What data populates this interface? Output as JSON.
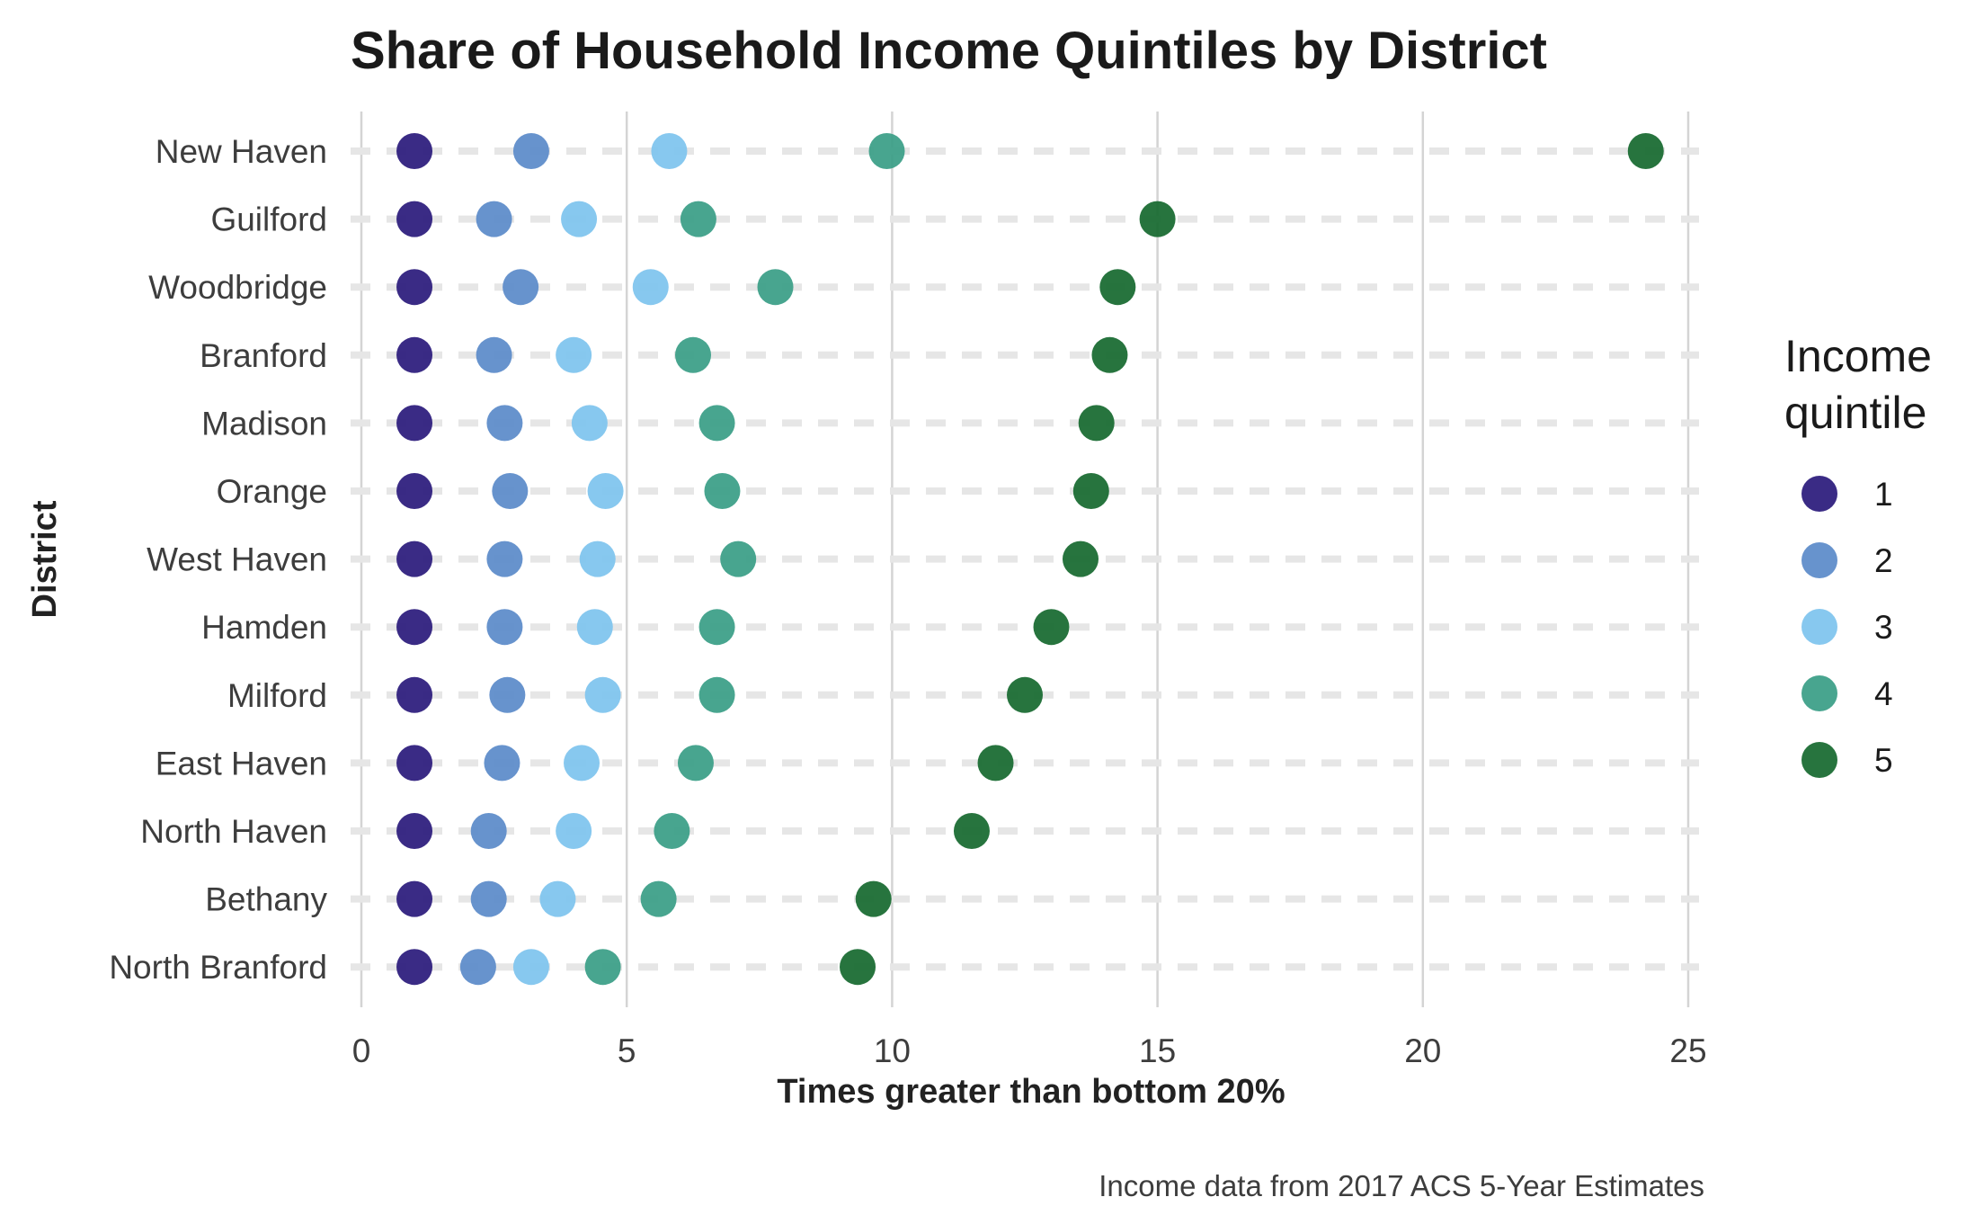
{
  "chart_data": {
    "type": "scatter",
    "title": "Share of Household Income Quintiles by District",
    "xlabel": "Times greater than bottom 20%",
    "ylabel": "District",
    "caption": "Income data from 2017 ACS 5-Year Estimates",
    "xlim": [
      0,
      25
    ],
    "xticks": [
      0,
      5,
      10,
      15,
      20,
      25
    ],
    "grid": "vertical major lines; dashed horizontal guides per district",
    "legend": {
      "title_lines": [
        "Income",
        "quintile"
      ],
      "placement": "right",
      "entries": [
        "1",
        "2",
        "3",
        "4",
        "5"
      ]
    },
    "colors": [
      "#2b1b7c",
      "#5b8bc9",
      "#7ec4ee",
      "#3a9e87",
      "#17692f"
    ],
    "categories": [
      "New Haven",
      "Guilford",
      "Woodbridge",
      "Branford",
      "Madison",
      "Orange",
      "West Haven",
      "Hamden",
      "Milford",
      "East Haven",
      "North Haven",
      "Bethany",
      "North Branford"
    ],
    "series": [
      {
        "name": "1",
        "values": [
          1,
          1,
          1,
          1,
          1,
          1,
          1,
          1,
          1,
          1,
          1,
          1,
          1
        ]
      },
      {
        "name": "2",
        "values": [
          3.2,
          2.5,
          3.0,
          2.5,
          2.7,
          2.8,
          2.7,
          2.7,
          2.75,
          2.65,
          2.4,
          2.4,
          2.2
        ]
      },
      {
        "name": "3",
        "values": [
          5.8,
          4.1,
          5.45,
          4.0,
          4.3,
          4.6,
          4.45,
          4.4,
          4.55,
          4.15,
          4.0,
          3.7,
          3.2
        ]
      },
      {
        "name": "4",
        "values": [
          9.9,
          6.35,
          7.8,
          6.25,
          6.7,
          6.8,
          7.1,
          6.7,
          6.7,
          6.3,
          5.85,
          5.6,
          4.55
        ]
      },
      {
        "name": "5",
        "values": [
          24.2,
          15.0,
          14.25,
          14.1,
          13.85,
          13.75,
          13.55,
          13.0,
          12.5,
          11.95,
          11.5,
          9.65,
          9.35
        ]
      }
    ]
  }
}
